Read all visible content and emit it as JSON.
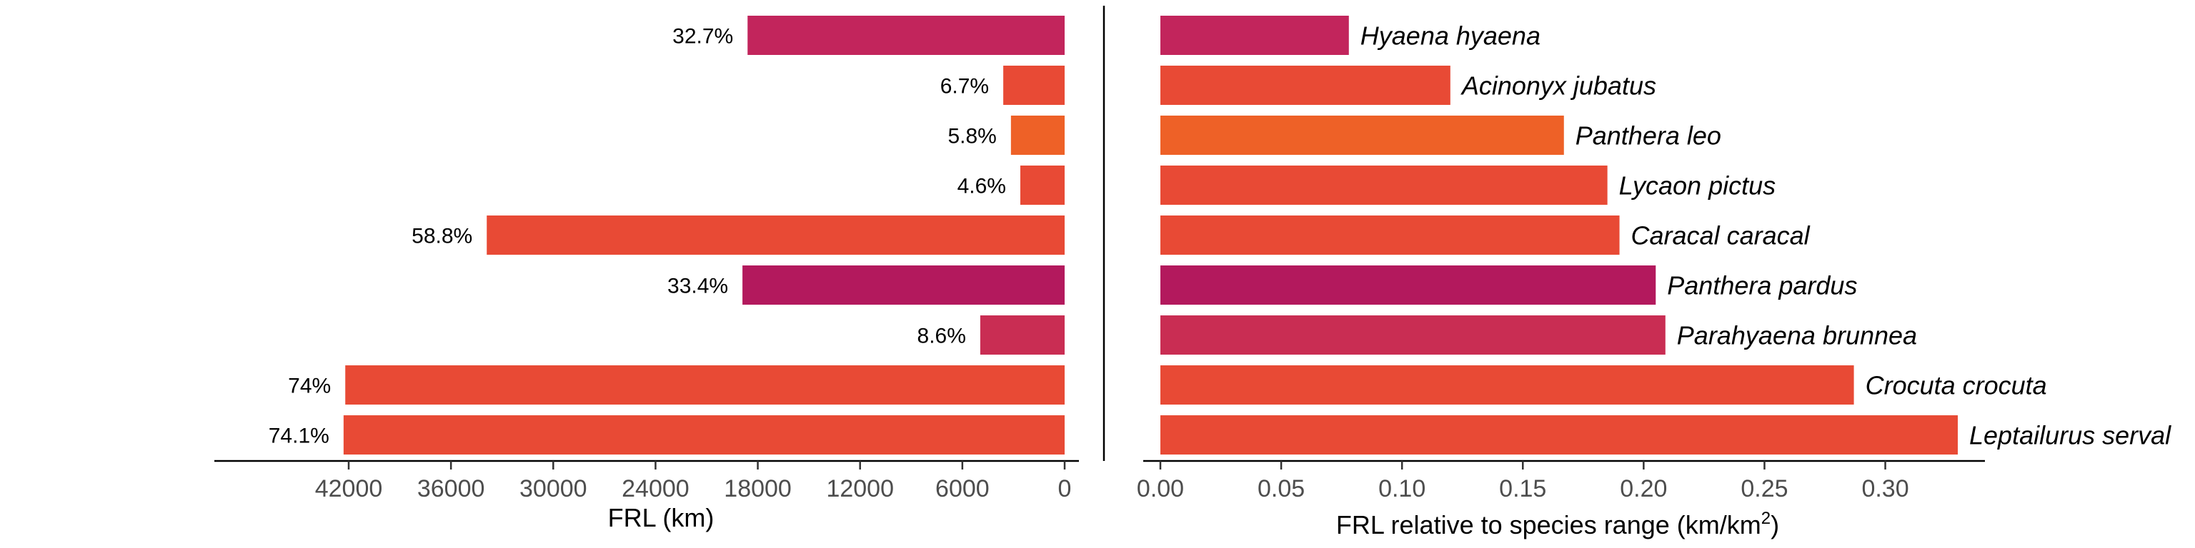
{
  "chart_data": [
    {
      "type": "bar",
      "orientation": "horizontal",
      "direction": "reversed",
      "categories": [
        "Hyaena hyaena",
        "Acinonyx jubatus",
        "Panthera leo",
        "Lycaon pictus",
        "Caracal caracal",
        "Panthera pardus",
        "Parahyaena brunnea",
        "Crocuta crocuta",
        "Leptailurus serval"
      ],
      "values": [
        18600,
        3600,
        3150,
        2600,
        33900,
        18900,
        4950,
        42200,
        42300
      ],
      "data_labels": [
        "32.7%",
        "6.7%",
        "5.8%",
        "4.6%",
        "58.8%",
        "33.4%",
        "8.6%",
        "74%",
        "74.1%"
      ],
      "colors": [
        "#c2255c",
        "#e84a35",
        "#ee6127",
        "#e84a35",
        "#e84a35",
        "#b3195d",
        "#c92d53",
        "#e84a35",
        "#e84a35"
      ],
      "xlabel": "FRL (km)",
      "ticks": [
        42000,
        36000,
        30000,
        24000,
        18000,
        12000,
        6000,
        0
      ],
      "tick_labels": [
        "42000",
        "36000",
        "30000",
        "24000",
        "18000",
        "12000",
        "6000",
        "0"
      ],
      "xlim": [
        0,
        42500
      ],
      "grid": false
    },
    {
      "type": "bar",
      "orientation": "horizontal",
      "categories": [
        "Hyaena hyaena",
        "Acinonyx jubatus",
        "Panthera leo",
        "Lycaon pictus",
        "Caracal caracal",
        "Panthera pardus",
        "Parahyaena brunnea",
        "Crocuta crocuta",
        "Leptailurus serval"
      ],
      "values": [
        0.078,
        0.12,
        0.167,
        0.185,
        0.19,
        0.205,
        0.209,
        0.287,
        0.33
      ],
      "colors": [
        "#c2255c",
        "#e84a35",
        "#ee6127",
        "#e84a35",
        "#e84a35",
        "#b3195d",
        "#c92d53",
        "#e84a35",
        "#e84a35"
      ],
      "xlabel_main": "FRL relative to species range (km/km",
      "xlabel_sup": "2",
      "xlabel_end": ")",
      "ticks": [
        0,
        0.05,
        0.1,
        0.15,
        0.2,
        0.25,
        0.3
      ],
      "tick_labels": [
        "0.00",
        "0.05",
        "0.10",
        "0.15",
        "0.20",
        "0.25",
        "0.30"
      ],
      "xlim": [
        0,
        0.33
      ],
      "grid": false
    }
  ]
}
